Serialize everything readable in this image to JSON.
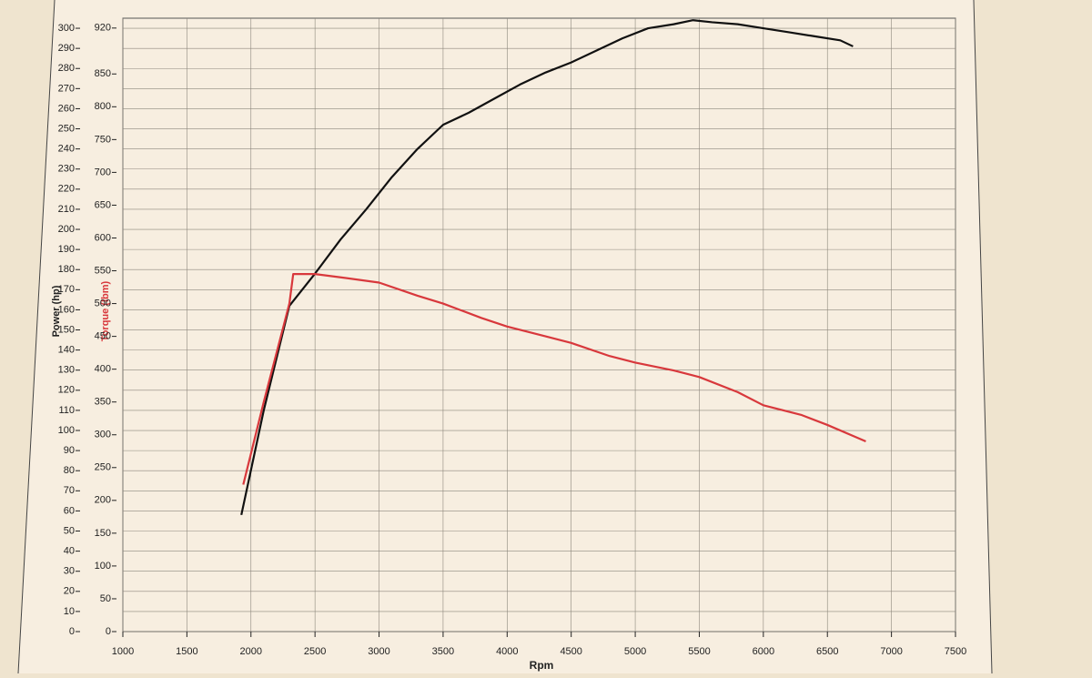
{
  "chart_data": {
    "type": "line",
    "x_label": "Rpm",
    "y_label": "Power (hp)",
    "y2_label": "Torque (lbm)",
    "xlim": [
      1000,
      7500
    ],
    "xticks": [
      1000,
      1500,
      2000,
      2500,
      3000,
      3500,
      4000,
      4500,
      5000,
      5500,
      6000,
      6500,
      7000,
      7500
    ],
    "ylim": [
      0,
      305
    ],
    "yticks": [
      0,
      10,
      20,
      30,
      40,
      50,
      60,
      70,
      80,
      90,
      100,
      110,
      120,
      130,
      140,
      150,
      160,
      170,
      180,
      190,
      200,
      210,
      220,
      230,
      240,
      250,
      260,
      270,
      280,
      290,
      300
    ],
    "y2lim": [
      0,
      935
    ],
    "y2ticks": [
      0,
      50,
      100,
      150,
      200,
      250,
      300,
      350,
      400,
      450,
      500,
      550,
      600,
      650,
      700,
      750,
      800,
      850,
      920
    ],
    "grid": true,
    "series": [
      {
        "name": "Power (hp)",
        "color": "#111111",
        "x": [
          1925,
          2100,
          2300,
          2500,
          2700,
          2900,
          3100,
          3300,
          3500,
          3700,
          3900,
          4100,
          4300,
          4500,
          4700,
          4900,
          5100,
          5300,
          5450,
          5600,
          5800,
          6000,
          6200,
          6400,
          6600,
          6700
        ],
        "values": [
          58,
          110,
          162,
          178,
          195,
          210,
          226,
          240,
          252,
          258,
          265,
          272,
          278,
          283,
          289,
          295,
          300,
          302,
          304,
          303,
          302,
          300,
          298,
          296,
          294,
          291
        ]
      },
      {
        "name": "Torque (lbm)",
        "color": "#d8383c",
        "axis": "y2",
        "x": [
          1940,
          2100,
          2300,
          2330,
          2500,
          2700,
          3000,
          3300,
          3500,
          3800,
          4000,
          4300,
          4500,
          4800,
          5000,
          5300,
          5500,
          5800,
          6000,
          6300,
          6500,
          6800
        ],
        "values": [
          224,
          350,
          500,
          545,
          545,
          540,
          532,
          512,
          500,
          478,
          465,
          450,
          440,
          420,
          410,
          398,
          388,
          365,
          345,
          330,
          315,
          290
        ]
      }
    ]
  }
}
